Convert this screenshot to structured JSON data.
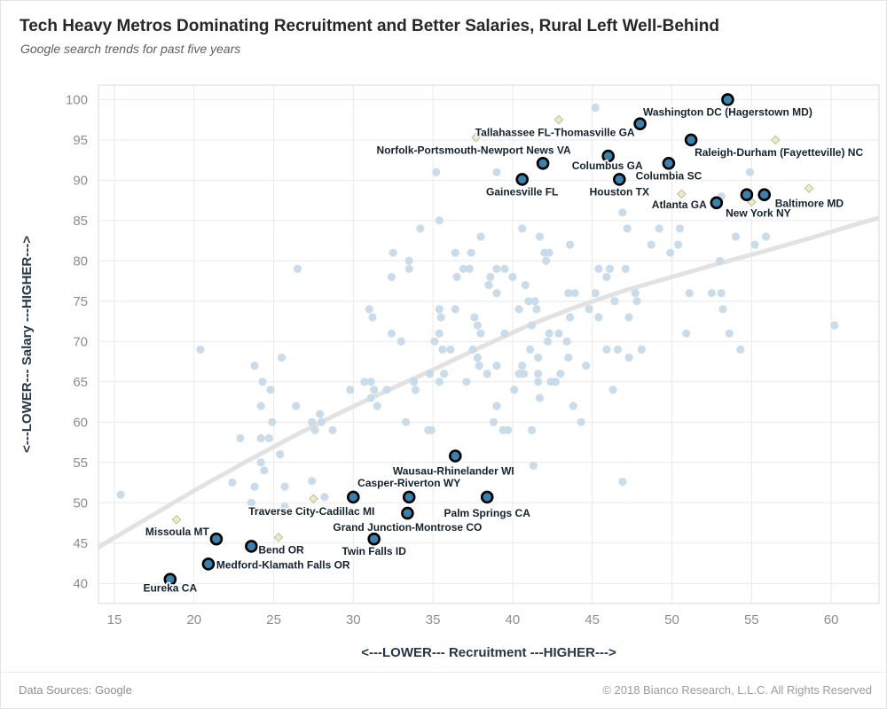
{
  "title": "Tech Heavy Metros Dominating Recruitment and Better Salaries, Rural Left Well-Behind",
  "subtitle": "Google search trends for past five years",
  "footer": {
    "left": "Data Sources: Google",
    "right": "© 2018 Bianco Research, L.L.C. All Rights Reserved"
  },
  "chart_data": {
    "type": "scatter",
    "title": "Tech Heavy Metros Dominating Recruitment and Better Salaries, Rural Left Well-Behind",
    "subtitle": "Google search trends for past five years",
    "xlabel": "<---LOWER--- Recruitment ---HIGHER--->",
    "ylabel": "<---LOWER--- Salary ---HIGHER--->",
    "xlim": [
      14,
      63
    ],
    "ylim": [
      37.5,
      101.8
    ],
    "x_ticks": [
      15,
      20,
      25,
      30,
      35,
      40,
      45,
      50,
      55,
      60
    ],
    "y_ticks": [
      40,
      45,
      50,
      55,
      60,
      65,
      70,
      75,
      80,
      85,
      90,
      95,
      100
    ],
    "grid": true,
    "legend": "none",
    "colors": {
      "metro_point": "#3b81ad",
      "metro_stroke": "#000000",
      "background_dot": "#c7dae8",
      "diamond_fill": "#ecead0",
      "diamond_stroke": "#c6c195",
      "trend": "#e2e2e2",
      "grid": "#e9e9e9",
      "axis_line": "#d9d9d9",
      "tick_label": "#8d8d8d",
      "axis_title": "#243648",
      "point_label": "#14222e"
    },
    "series": [
      {
        "name": "labeled-metros",
        "marker": "circle-outlined",
        "points": [
          {
            "label": "Eureka CA",
            "x": 18.5,
            "y": 40.5,
            "anchor": "middle",
            "dx": 0,
            "dy": 14
          },
          {
            "label": "Medford-Klamath Falls OR",
            "x": 20.9,
            "y": 42.4,
            "anchor": "start",
            "dx": 9,
            "dy": 5
          },
          {
            "label": "Bend OR",
            "x": 23.6,
            "y": 44.6,
            "anchor": "start",
            "dx": 8,
            "dy": 8
          },
          {
            "label": "Missoula MT",
            "x": 21.4,
            "y": 45.5,
            "anchor": "end",
            "dx": -8,
            "dy": -4
          },
          {
            "label": "Twin Falls ID",
            "x": 31.3,
            "y": 45.5,
            "anchor": "middle",
            "dx": 0,
            "dy": 18
          },
          {
            "label": "Grand Junction-Montrose CO",
            "x": 33.4,
            "y": 48.7,
            "anchor": "middle",
            "dx": 0,
            "dy": 20
          },
          {
            "label": "Traverse City-Cadillac MI",
            "x": 30.0,
            "y": 50.7,
            "anchor": "middle",
            "dx": -47,
            "dy": 20
          },
          {
            "label": "Casper-Riverton WY",
            "x": 33.5,
            "y": 50.7,
            "anchor": "middle",
            "dx": 0,
            "dy": -12
          },
          {
            "label": "Palm Springs CA",
            "x": 38.4,
            "y": 50.7,
            "anchor": "middle",
            "dx": 0,
            "dy": 22
          },
          {
            "label": "Wausau-Rhinelander WI",
            "x": 36.4,
            "y": 55.8,
            "anchor": "middle",
            "dx": -2,
            "dy": 21
          },
          {
            "label": "Atlanta GA",
            "x": 52.8,
            "y": 87.2,
            "anchor": "end",
            "dx": -11,
            "dy": 6
          },
          {
            "label": "New York NY",
            "x": 54.7,
            "y": 88.2,
            "anchor": "middle",
            "dx": 13,
            "dy": 25
          },
          {
            "label": "Baltimore MD",
            "x": 55.8,
            "y": 88.2,
            "anchor": "start",
            "dx": 12,
            "dy": 14
          },
          {
            "label": "Gainesville FL",
            "x": 40.6,
            "y": 90.1,
            "anchor": "middle",
            "dx": 0,
            "dy": 18
          },
          {
            "label": "Houston TX",
            "x": 46.7,
            "y": 90.1,
            "anchor": "middle",
            "dx": 0,
            "dy": 18
          },
          {
            "label": "Norfolk-Portsmouth-Newport News VA",
            "x": 41.9,
            "y": 92.1,
            "anchor": "middle",
            "dx": -78,
            "dy": -11
          },
          {
            "label": "Columbia SC",
            "x": 49.8,
            "y": 92.1,
            "anchor": "middle",
            "dx": 0,
            "dy": 18
          },
          {
            "label": "Columbus GA",
            "x": 46.0,
            "y": 93.0,
            "anchor": "middle",
            "dx": -1,
            "dy": 15
          },
          {
            "label": "Raleigh-Durham (Fayetteville) NC",
            "x": 51.2,
            "y": 95.0,
            "anchor": "start",
            "dx": 4,
            "dy": 18
          },
          {
            "label": "Tallahassee FL-Thomasville GA",
            "x": 48.0,
            "y": 97.0,
            "anchor": "end",
            "dx": -6,
            "dy": 14
          },
          {
            "label": "Washington DC (Hagerstown MD)",
            "x": 53.5,
            "y": 100.0,
            "anchor": "middle",
            "dx": 0,
            "dy": 18
          }
        ]
      },
      {
        "name": "diamond-markers",
        "marker": "diamond",
        "points": [
          [
            42.9,
            97.5
          ],
          [
            37.7,
            95.3
          ],
          [
            56.5,
            95.0
          ],
          [
            58.6,
            89.0
          ],
          [
            50.6,
            88.3
          ],
          [
            55.0,
            87.3
          ],
          [
            27.5,
            50.5
          ],
          [
            18.9,
            47.9
          ],
          [
            25.3,
            45.7
          ]
        ]
      },
      {
        "name": "other-metros-background",
        "marker": "dot",
        "points": [
          [
            45.2,
            99
          ],
          [
            35.2,
            91
          ],
          [
            39,
            91
          ],
          [
            54.9,
            91
          ],
          [
            53.1,
            88
          ],
          [
            46.9,
            86
          ],
          [
            35.4,
            85
          ],
          [
            34.2,
            84
          ],
          [
            40.6,
            84
          ],
          [
            47.2,
            84
          ],
          [
            49.2,
            84
          ],
          [
            50.5,
            84
          ],
          [
            38,
            83
          ],
          [
            41.7,
            83
          ],
          [
            54,
            83
          ],
          [
            55.9,
            83
          ],
          [
            43.6,
            82
          ],
          [
            48.7,
            82
          ],
          [
            50.4,
            82
          ],
          [
            55.2,
            82
          ],
          [
            32.5,
            81
          ],
          [
            36.4,
            81
          ],
          [
            37.4,
            81
          ],
          [
            42,
            81
          ],
          [
            42.3,
            81
          ],
          [
            49.9,
            81
          ],
          [
            33.5,
            80
          ],
          [
            42.1,
            80
          ],
          [
            53,
            80
          ],
          [
            26.5,
            79
          ],
          [
            33.5,
            79
          ],
          [
            36.9,
            79
          ],
          [
            37.3,
            79
          ],
          [
            39,
            79
          ],
          [
            39.5,
            79
          ],
          [
            45.4,
            79
          ],
          [
            46.1,
            79
          ],
          [
            47.1,
            79
          ],
          [
            32.4,
            78
          ],
          [
            36.5,
            78
          ],
          [
            38.6,
            78
          ],
          [
            40,
            78
          ],
          [
            45.9,
            78
          ],
          [
            38.5,
            77
          ],
          [
            40.8,
            77
          ],
          [
            39,
            76
          ],
          [
            43.5,
            76
          ],
          [
            43.9,
            76
          ],
          [
            45.2,
            76
          ],
          [
            47.7,
            76
          ],
          [
            51.1,
            76
          ],
          [
            52.5,
            76
          ],
          [
            53.1,
            76
          ],
          [
            41,
            75
          ],
          [
            41.4,
            75
          ],
          [
            46.4,
            75
          ],
          [
            47.8,
            75
          ],
          [
            31,
            74
          ],
          [
            35.4,
            74
          ],
          [
            36.4,
            74
          ],
          [
            40.4,
            74
          ],
          [
            41.5,
            74
          ],
          [
            44.8,
            74
          ],
          [
            53.2,
            74
          ],
          [
            31.2,
            73
          ],
          [
            35.5,
            73
          ],
          [
            37.6,
            73
          ],
          [
            43.6,
            73
          ],
          [
            45.4,
            73
          ],
          [
            47.3,
            73
          ],
          [
            37.8,
            72
          ],
          [
            41.2,
            72
          ],
          [
            60.2,
            72
          ],
          [
            32.4,
            71
          ],
          [
            35.4,
            71
          ],
          [
            38,
            71
          ],
          [
            39.5,
            71
          ],
          [
            42.3,
            71
          ],
          [
            42.9,
            71
          ],
          [
            50.9,
            71
          ],
          [
            53.6,
            71
          ],
          [
            33,
            70
          ],
          [
            35.1,
            70
          ],
          [
            42.2,
            70
          ],
          [
            43.4,
            70
          ],
          [
            20.4,
            69
          ],
          [
            35.6,
            69
          ],
          [
            36.1,
            69
          ],
          [
            37.5,
            69
          ],
          [
            41.1,
            69
          ],
          [
            45.9,
            69
          ],
          [
            46.6,
            69
          ],
          [
            48.1,
            69
          ],
          [
            54.3,
            69
          ],
          [
            25.5,
            68
          ],
          [
            37.8,
            68
          ],
          [
            41.6,
            68
          ],
          [
            43.5,
            68
          ],
          [
            47.3,
            68
          ],
          [
            23.8,
            67
          ],
          [
            37.9,
            67
          ],
          [
            39,
            67
          ],
          [
            40.6,
            67
          ],
          [
            44.6,
            67
          ],
          [
            34.8,
            66
          ],
          [
            35.7,
            66
          ],
          [
            38.4,
            66
          ],
          [
            40.4,
            66
          ],
          [
            40.7,
            66
          ],
          [
            41.6,
            66
          ],
          [
            43,
            66
          ],
          [
            24.3,
            65
          ],
          [
            30.7,
            65
          ],
          [
            31.1,
            65
          ],
          [
            33.8,
            65
          ],
          [
            35.4,
            65
          ],
          [
            37.1,
            65
          ],
          [
            41.6,
            65
          ],
          [
            42.4,
            65
          ],
          [
            42.7,
            65
          ],
          [
            24.8,
            64
          ],
          [
            29.8,
            64
          ],
          [
            31.3,
            64
          ],
          [
            32.1,
            64
          ],
          [
            33.9,
            64
          ],
          [
            40.1,
            64
          ],
          [
            46.3,
            64
          ],
          [
            31.1,
            63
          ],
          [
            41.7,
            63
          ],
          [
            24.2,
            62
          ],
          [
            26.4,
            62
          ],
          [
            31.5,
            62
          ],
          [
            39,
            62
          ],
          [
            43.8,
            62
          ],
          [
            27.9,
            61
          ],
          [
            24.9,
            60
          ],
          [
            27.4,
            60
          ],
          [
            28,
            60
          ],
          [
            33.3,
            60
          ],
          [
            38.8,
            60
          ],
          [
            44.3,
            60
          ],
          [
            27.6,
            59
          ],
          [
            28.7,
            59
          ],
          [
            34.7,
            59
          ],
          [
            34.9,
            59
          ],
          [
            39.4,
            59
          ],
          [
            39.7,
            59
          ],
          [
            41.2,
            59
          ],
          [
            22.9,
            58
          ],
          [
            24.2,
            58
          ],
          [
            24.7,
            58
          ],
          [
            25.4,
            56
          ],
          [
            24.2,
            55
          ],
          [
            24.4,
            54
          ],
          [
            41.3,
            54.6
          ],
          [
            22.4,
            52.5
          ],
          [
            27.4,
            52.7
          ],
          [
            46.9,
            52.6
          ],
          [
            23.8,
            52
          ],
          [
            25.7,
            52
          ],
          [
            15.4,
            51
          ],
          [
            28.2,
            50.7
          ],
          [
            23.6,
            50
          ],
          [
            25.7,
            49.5
          ]
        ]
      },
      {
        "name": "trend-curve",
        "marker": "line",
        "points": [
          [
            14,
            44.5
          ],
          [
            17,
            48
          ],
          [
            20,
            51.5
          ],
          [
            23,
            54.8
          ],
          [
            26,
            58
          ],
          [
            29,
            61
          ],
          [
            32,
            63.8
          ],
          [
            35,
            66.5
          ],
          [
            38,
            69.3
          ],
          [
            41,
            72
          ],
          [
            44,
            74.3
          ],
          [
            47,
            76.3
          ],
          [
            50,
            78
          ],
          [
            53,
            79.7
          ],
          [
            56,
            81.3
          ],
          [
            59,
            83
          ],
          [
            62,
            84.8
          ],
          [
            63.5,
            85.6
          ]
        ]
      }
    ]
  }
}
